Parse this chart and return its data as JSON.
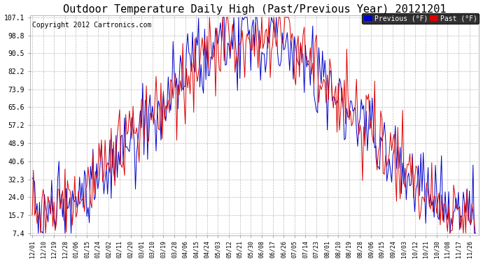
{
  "title": "Outdoor Temperature Daily High (Past/Previous Year) 20121201",
  "copyright": "Copyright 2012 Cartronics.com",
  "legend_blue_label": "Previous (°F)",
  "legend_red_label": "Past (°F)",
  "yticks": [
    7.4,
    15.7,
    24.0,
    32.3,
    40.6,
    48.9,
    57.2,
    65.6,
    73.9,
    82.2,
    90.5,
    98.8,
    107.1
  ],
  "background_color": "#ffffff",
  "plot_bg_color": "#ffffff",
  "grid_color": "#bbbbbb",
  "blue_color": "#0000cc",
  "red_color": "#dd0000",
  "title_fontsize": 11,
  "copyright_fontsize": 7,
  "tick_fontsize": 7,
  "xtick_labels": [
    "12/01",
    "12/10",
    "12/19",
    "12/28",
    "01/06",
    "01/15",
    "01/24",
    "02/02",
    "02/11",
    "02/20",
    "03/01",
    "03/10",
    "03/19",
    "03/28",
    "04/06",
    "04/15",
    "04/24",
    "05/03",
    "05/12",
    "05/21",
    "05/30",
    "06/08",
    "06/17",
    "06/26",
    "07/05",
    "07/14",
    "07/23",
    "08/01",
    "08/10",
    "08/19",
    "08/28",
    "09/06",
    "09/15",
    "09/24",
    "10/03",
    "10/12",
    "10/21",
    "10/30",
    "11/08",
    "11/17",
    "11/26"
  ]
}
